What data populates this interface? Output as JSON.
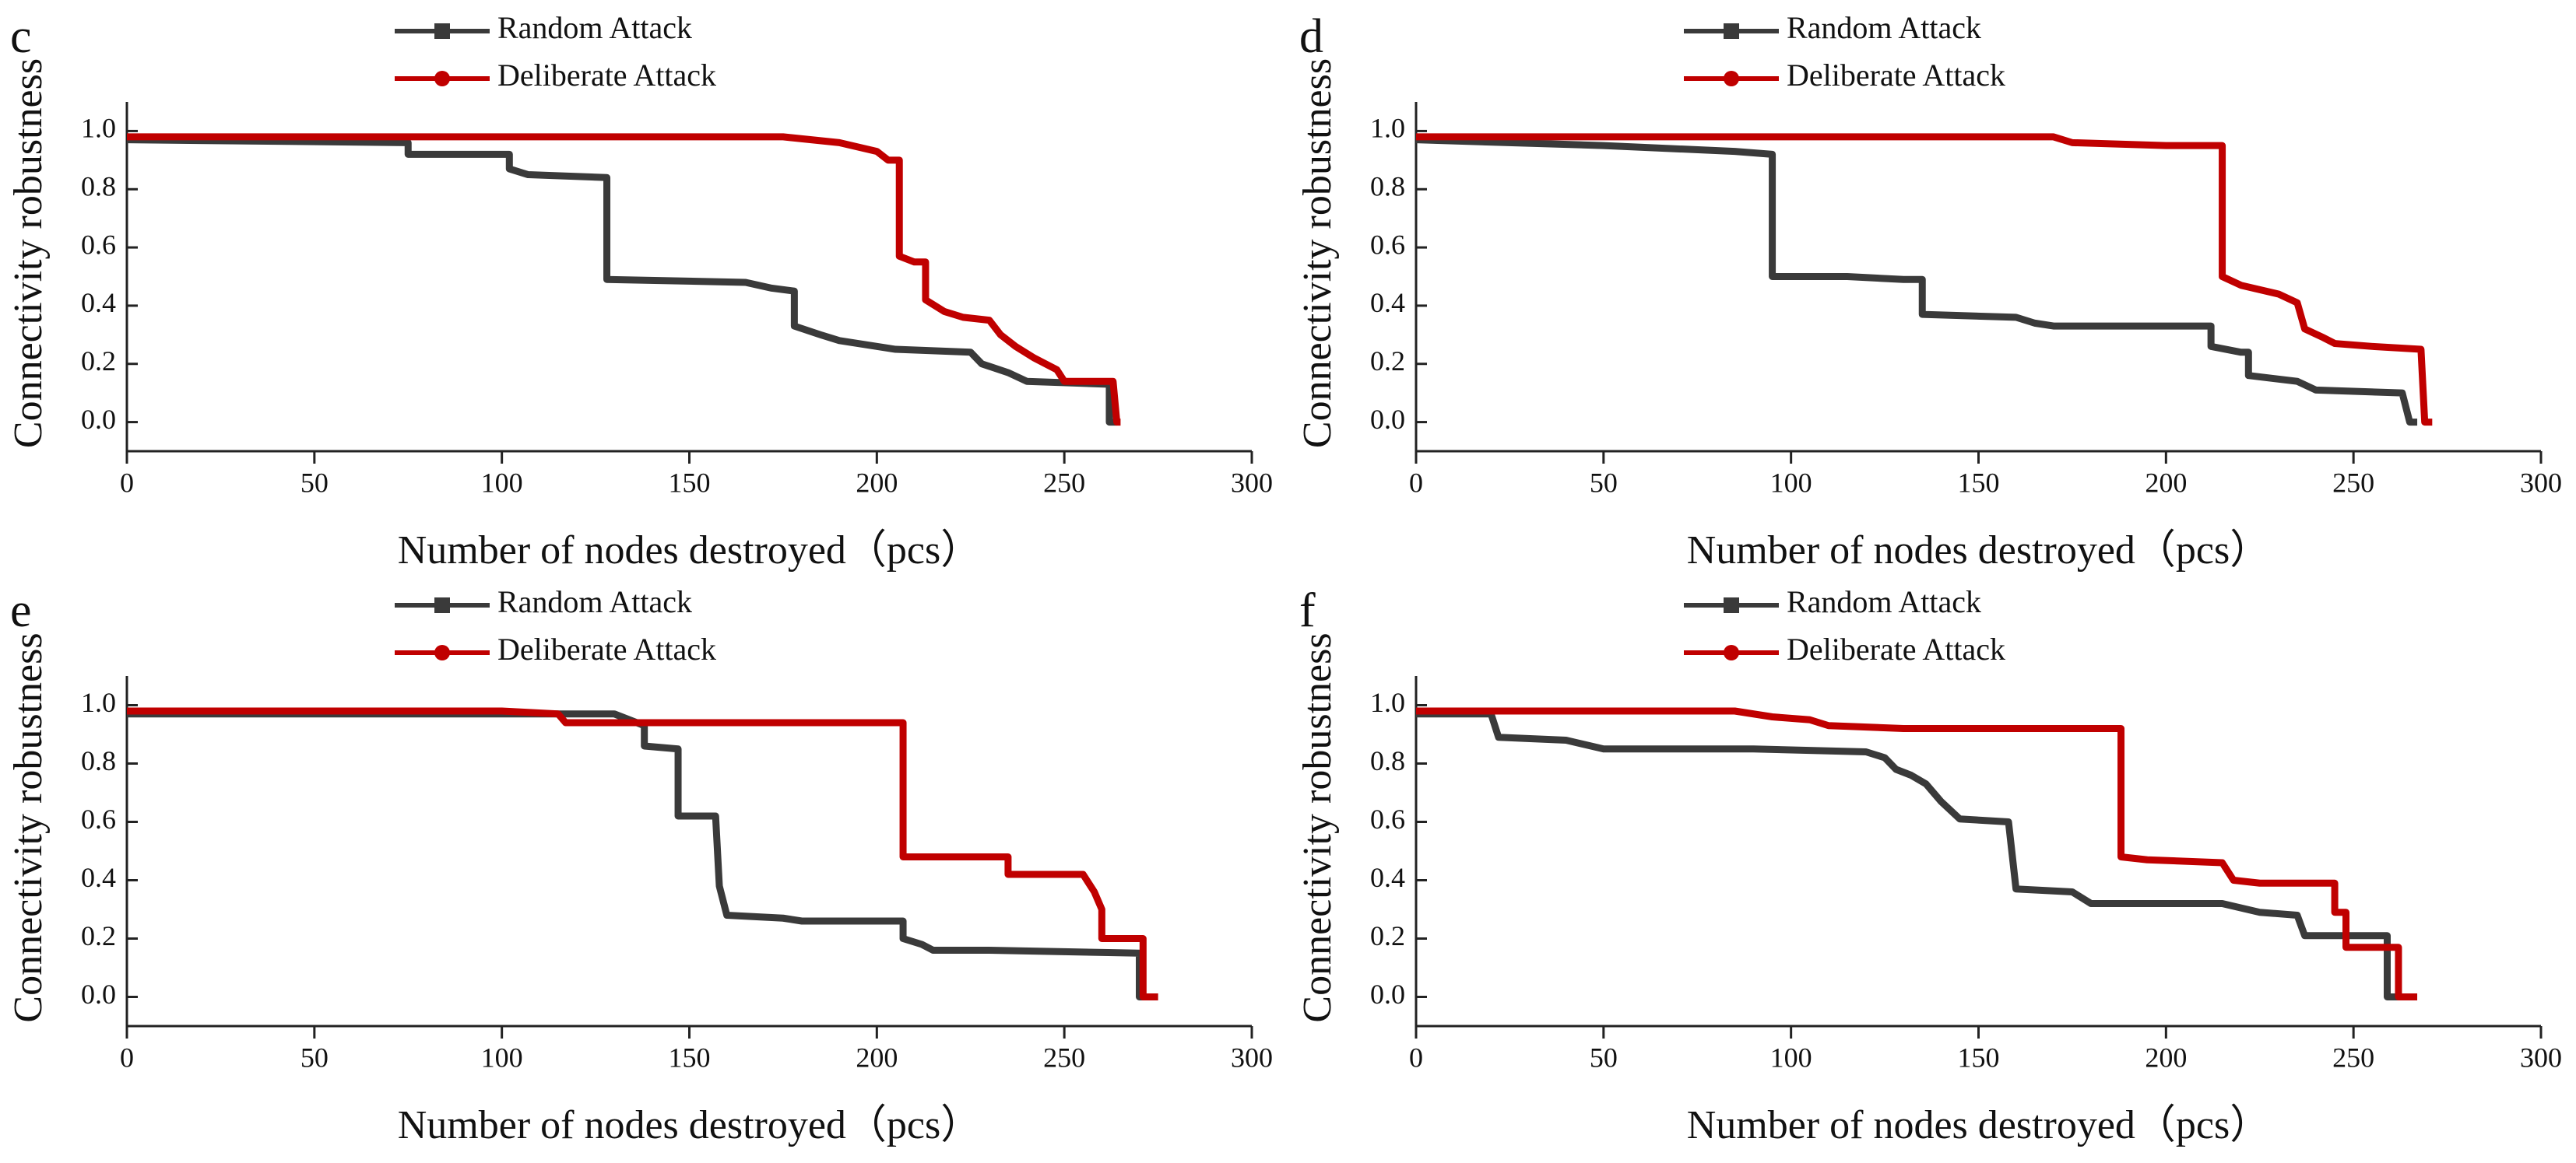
{
  "chart_data": [
    {
      "type": "line",
      "panel": "c",
      "xlabel": "Number of nodes destroyed（pcs）",
      "ylabel": "Connectivity robustness",
      "xlim": [
        0,
        300
      ],
      "ylim": [
        -0.1,
        1.1
      ],
      "xticks": [
        0,
        50,
        100,
        150,
        200,
        250,
        300
      ],
      "yticks": [
        {
          "value": 0,
          "label": "0.0"
        },
        {
          "value": 0.2,
          "label": "0.2"
        },
        {
          "value": 0.4,
          "label": "0.4"
        },
        {
          "value": 0.6,
          "label": "0.6"
        },
        {
          "value": 0.8,
          "label": "0.8"
        },
        {
          "value": 1,
          "label": "1.0"
        }
      ],
      "legend": "top-center",
      "series": [
        {
          "name": "Random Attack",
          "color": "#3a3a3a",
          "marker": "square",
          "x": [
            0,
            75,
            75,
            102,
            102,
            107,
            128,
            128,
            165,
            172,
            178,
            178,
            185,
            190,
            200,
            205,
            225,
            228,
            235,
            240,
            262,
            262,
            264
          ],
          "values": [
            0.97,
            0.96,
            0.92,
            0.92,
            0.87,
            0.85,
            0.84,
            0.49,
            0.48,
            0.46,
            0.45,
            0.33,
            0.3,
            0.28,
            0.26,
            0.25,
            0.24,
            0.2,
            0.17,
            0.14,
            0.13,
            0.0,
            0.0
          ]
        },
        {
          "name": "Deliberate Attack",
          "color": "#c00000",
          "marker": "circle",
          "x": [
            0,
            175,
            190,
            200,
            203,
            206,
            206,
            210,
            213,
            213,
            218,
            223,
            230,
            233,
            237,
            242,
            248,
            250,
            263,
            264,
            265
          ],
          "values": [
            0.98,
            0.98,
            0.96,
            0.93,
            0.9,
            0.9,
            0.57,
            0.55,
            0.55,
            0.42,
            0.38,
            0.36,
            0.35,
            0.3,
            0.26,
            0.22,
            0.18,
            0.14,
            0.14,
            0.0,
            0.0
          ]
        }
      ]
    },
    {
      "type": "line",
      "panel": "d",
      "xlabel": "Number of nodes destroyed（pcs）",
      "ylabel": "Connectivity robustness",
      "xlim": [
        0,
        300
      ],
      "ylim": [
        -0.1,
        1.1
      ],
      "xticks": [
        0,
        50,
        100,
        150,
        200,
        250,
        300
      ],
      "yticks": [
        {
          "value": 0,
          "label": "0.0"
        },
        {
          "value": 0.2,
          "label": "0.2"
        },
        {
          "value": 0.4,
          "label": "0.4"
        },
        {
          "value": 0.6,
          "label": "0.6"
        },
        {
          "value": 0.8,
          "label": "0.8"
        },
        {
          "value": 1,
          "label": "1.0"
        }
      ],
      "legend": "top-center",
      "series": [
        {
          "name": "Random Attack",
          "color": "#3a3a3a",
          "marker": "square",
          "x": [
            0,
            50,
            85,
            95,
            95,
            115,
            130,
            135,
            135,
            160,
            165,
            170,
            212,
            212,
            220,
            222,
            222,
            235,
            240,
            263,
            265,
            267
          ],
          "values": [
            0.97,
            0.95,
            0.93,
            0.92,
            0.5,
            0.5,
            0.49,
            0.49,
            0.37,
            0.36,
            0.34,
            0.33,
            0.33,
            0.26,
            0.24,
            0.24,
            0.16,
            0.14,
            0.11,
            0.1,
            0.0,
            0.0
          ]
        },
        {
          "name": "Deliberate Attack",
          "color": "#c00000",
          "marker": "circle",
          "x": [
            0,
            170,
            175,
            200,
            215,
            215,
            220,
            230,
            235,
            237,
            242,
            245,
            255,
            268,
            269,
            271
          ],
          "values": [
            0.98,
            0.98,
            0.96,
            0.95,
            0.95,
            0.5,
            0.47,
            0.44,
            0.41,
            0.32,
            0.29,
            0.27,
            0.26,
            0.25,
            0.0,
            0.0
          ]
        }
      ]
    },
    {
      "type": "line",
      "panel": "e",
      "xlabel": "Number of nodes destroyed（pcs）",
      "ylabel": "Connectivity robustness",
      "xlim": [
        0,
        300
      ],
      "ylim": [
        -0.1,
        1.1
      ],
      "xticks": [
        0,
        50,
        100,
        150,
        200,
        250,
        300
      ],
      "yticks": [
        {
          "value": 0,
          "label": "0.0"
        },
        {
          "value": 0.2,
          "label": "0.2"
        },
        {
          "value": 0.4,
          "label": "0.4"
        },
        {
          "value": 0.6,
          "label": "0.6"
        },
        {
          "value": 0.8,
          "label": "0.8"
        },
        {
          "value": 1,
          "label": "1.0"
        }
      ],
      "legend": "top-center",
      "series": [
        {
          "name": "Random Attack",
          "color": "#3a3a3a",
          "marker": "square",
          "x": [
            0,
            115,
            130,
            138,
            138,
            147,
            147,
            157,
            158,
            160,
            175,
            180,
            207,
            207,
            212,
            215,
            230,
            270,
            270,
            275
          ],
          "values": [
            0.97,
            0.97,
            0.97,
            0.93,
            0.86,
            0.85,
            0.62,
            0.62,
            0.38,
            0.28,
            0.27,
            0.26,
            0.26,
            0.2,
            0.18,
            0.16,
            0.16,
            0.15,
            0.0,
            0.0
          ]
        },
        {
          "name": "Deliberate Attack",
          "color": "#c00000",
          "marker": "circle",
          "x": [
            0,
            100,
            115,
            117,
            150,
            207,
            207,
            235,
            235,
            255,
            258,
            260,
            260,
            271,
            271,
            275
          ],
          "values": [
            0.98,
            0.98,
            0.97,
            0.94,
            0.94,
            0.94,
            0.48,
            0.48,
            0.42,
            0.42,
            0.36,
            0.3,
            0.2,
            0.2,
            0.0,
            0.0
          ]
        }
      ]
    },
    {
      "type": "line",
      "panel": "f",
      "xlabel": "Number of nodes destroyed（pcs）",
      "ylabel": "Connectivity robustness",
      "xlim": [
        0,
        300
      ],
      "ylim": [
        -0.1,
        1.1
      ],
      "xticks": [
        0,
        50,
        100,
        150,
        200,
        250,
        300
      ],
      "yticks": [
        {
          "value": 0,
          "label": "0.0"
        },
        {
          "value": 0.2,
          "label": "0.2"
        },
        {
          "value": 0.4,
          "label": "0.4"
        },
        {
          "value": 0.6,
          "label": "0.6"
        },
        {
          "value": 0.8,
          "label": "0.8"
        },
        {
          "value": 1,
          "label": "1.0"
        }
      ],
      "legend": "top-center",
      "series": [
        {
          "name": "Random Attack",
          "color": "#3a3a3a",
          "marker": "square",
          "x": [
            0,
            20,
            22,
            40,
            50,
            90,
            120,
            125,
            128,
            132,
            136,
            140,
            145,
            158,
            160,
            175,
            180,
            215,
            225,
            235,
            237,
            259,
            259,
            262
          ],
          "values": [
            0.97,
            0.97,
            0.89,
            0.88,
            0.85,
            0.85,
            0.84,
            0.82,
            0.78,
            0.76,
            0.73,
            0.67,
            0.61,
            0.6,
            0.37,
            0.36,
            0.32,
            0.32,
            0.29,
            0.28,
            0.21,
            0.21,
            0.0,
            0.0
          ]
        },
        {
          "name": "Deliberate Attack",
          "color": "#c00000",
          "marker": "circle",
          "x": [
            0,
            85,
            95,
            105,
            110,
            130,
            188,
            188,
            195,
            215,
            218,
            225,
            245,
            245,
            248,
            248,
            262,
            262,
            267
          ],
          "values": [
            0.98,
            0.98,
            0.96,
            0.95,
            0.93,
            0.92,
            0.92,
            0.48,
            0.47,
            0.46,
            0.4,
            0.39,
            0.39,
            0.29,
            0.29,
            0.17,
            0.17,
            0.0,
            0.0
          ]
        }
      ]
    }
  ]
}
